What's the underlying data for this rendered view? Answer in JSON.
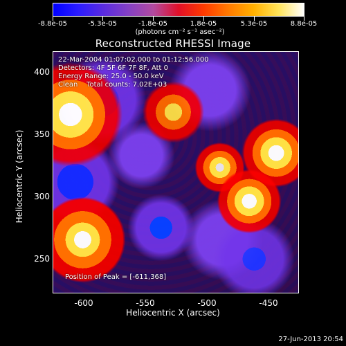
{
  "colorbar": {
    "labels": [
      "-8.8e-05",
      "-5.3e-05",
      "-1.8e-05",
      "1.8e-05",
      "5.3e-05",
      "8.8e-05"
    ],
    "units": "(photons cm⁻² s⁻¹ asec⁻²)"
  },
  "title": "Reconstructed RHESSI Image",
  "plot": {
    "overlay": {
      "line1": "22-Mar-2004 01:07:02.000 to 01:12:56.000",
      "line2": "Detectors: 4F 5F 6F 7F 8F, Att 0",
      "line3": "Energy Range: 25.0 - 50.0 keV",
      "line4": "Clean    Total counts: 7.02E+03"
    },
    "peak": "Position of Peak = [-611,368]"
  },
  "axes": {
    "x_label": "Heliocentric X (arcsec)",
    "y_label": "Heliocentric Y (arcsec)",
    "x_ticks": [
      "-600",
      "-550",
      "-500",
      "-450"
    ],
    "y_ticks": [
      "400",
      "350",
      "300",
      "250"
    ]
  },
  "footer": {
    "timestamp": "27-Jun-2013 20:54"
  }
}
